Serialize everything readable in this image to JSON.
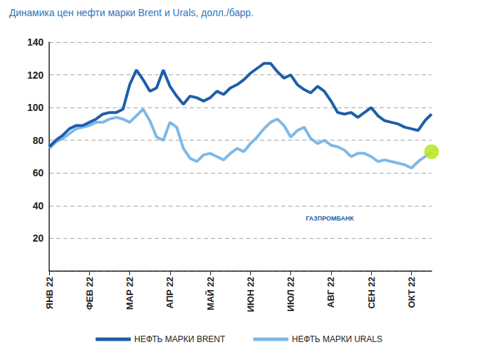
{
  "chart_data": {
    "type": "line",
    "title": "Динамика цен нефти марки Brent и Urals, долл./барр.",
    "categories": [
      "ЯНВ 22",
      null,
      null,
      null,
      null,
      null,
      "ФЕВ 22",
      null,
      null,
      null,
      null,
      null,
      "МАР 22",
      null,
      null,
      null,
      null,
      null,
      "АПР 22",
      null,
      null,
      null,
      null,
      null,
      "МАЙ 22",
      null,
      null,
      null,
      null,
      null,
      "ИЮН 22",
      null,
      null,
      null,
      null,
      null,
      "ИЮЛ 22",
      null,
      null,
      null,
      null,
      null,
      "АВГ 22",
      null,
      null,
      null,
      null,
      null,
      "СЕН 22",
      null,
      null,
      null,
      null,
      null,
      "ОКТ 22",
      null,
      null,
      null
    ],
    "series": [
      {
        "name": "НЕФТЬ МАРКИ BRENT",
        "color": "#1d5ea8",
        "values": [
          76,
          80,
          83,
          87,
          89,
          89,
          91,
          93,
          96,
          97,
          97,
          99,
          114,
          123,
          117,
          110,
          112,
          123,
          113,
          107,
          102,
          107,
          106,
          104,
          106,
          110,
          108,
          112,
          114,
          117,
          121,
          124,
          127,
          127,
          122,
          118,
          120,
          114,
          111,
          109,
          113,
          110,
          104,
          97,
          96,
          97,
          94,
          97,
          100,
          95,
          92,
          91,
          90,
          88,
          87,
          86,
          92,
          96
        ]
      },
      {
        "name": "НЕФТЬ МАРКИ URALS",
        "color": "#7db9e8",
        "values": [
          75,
          79,
          81,
          84,
          87,
          88,
          89,
          91,
          91,
          93,
          94,
          93,
          91,
          95,
          99,
          92,
          82,
          80,
          91,
          88,
          75,
          69,
          67,
          71,
          72,
          70,
          68,
          72,
          75,
          73,
          78,
          82,
          87,
          91,
          93,
          89,
          82,
          86,
          88,
          81,
          78,
          80,
          77,
          76,
          74,
          70,
          72,
          72,
          70,
          67,
          68,
          67,
          66,
          65,
          63,
          67,
          70,
          73
        ]
      }
    ],
    "ylim": [
      0,
      140
    ],
    "yticks": [
      20,
      40,
      60,
      80,
      100,
      120,
      140
    ],
    "grid": true,
    "legend": "bottom",
    "annotations": [
      "ГАЗПРОМБАНК"
    ]
  }
}
